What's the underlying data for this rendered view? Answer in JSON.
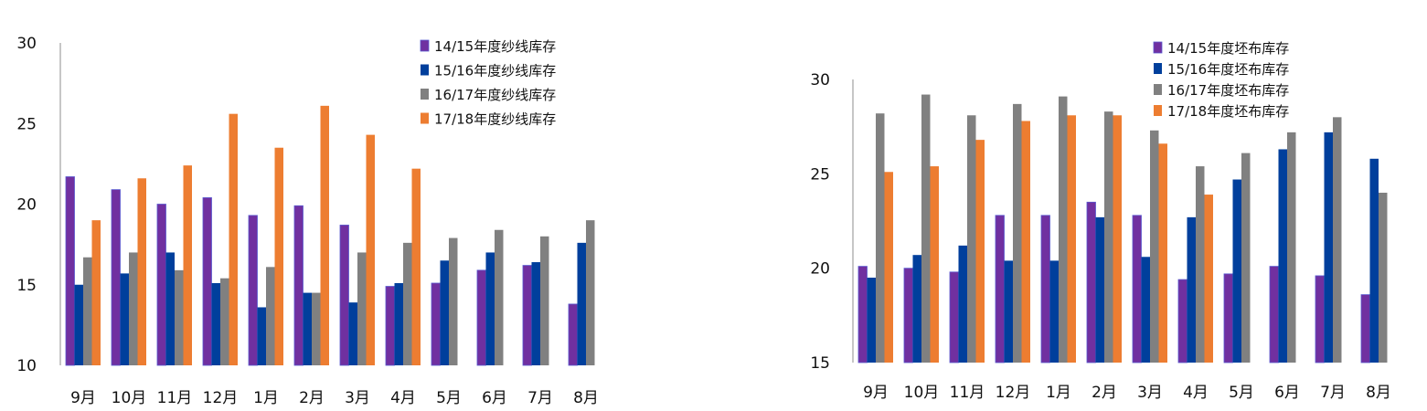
{
  "chart_data": [
    {
      "type": "bar",
      "categories": [
        "9月",
        "10月",
        "11月",
        "12月",
        "1月",
        "2月",
        "3月",
        "4月",
        "5月",
        "6月",
        "7月",
        "8月"
      ],
      "ylim": [
        10,
        30
      ],
      "yticks": [
        10,
        15,
        20,
        25,
        30
      ],
      "legend_position": "top-right",
      "series": [
        {
          "name": "14/15年度纱线库存",
          "color": "#7030A0",
          "values": [
            21.7,
            20.9,
            20.0,
            20.4,
            19.3,
            19.9,
            18.7,
            14.9,
            15.1,
            15.9,
            16.2,
            13.8
          ]
        },
        {
          "name": "15/16年度纱线库存",
          "color": "#003F9C",
          "values": [
            15.0,
            15.7,
            17.0,
            15.1,
            13.6,
            14.5,
            13.9,
            15.1,
            16.5,
            17.0,
            16.4,
            17.6
          ]
        },
        {
          "name": "16/17年度纱线库存",
          "color": "#808080",
          "values": [
            16.7,
            17.0,
            15.9,
            15.4,
            16.1,
            14.5,
            17.0,
            17.6,
            17.9,
            18.4,
            18.0,
            19.0
          ]
        },
        {
          "name": "17/18年度纱线库存",
          "color": "#ED7D31",
          "values": [
            19.0,
            21.6,
            22.4,
            25.6,
            23.5,
            26.1,
            24.3,
            22.2,
            null,
            null,
            null,
            null
          ]
        }
      ]
    },
    {
      "type": "bar",
      "categories": [
        "9月",
        "10月",
        "11月",
        "12月",
        "1月",
        "2月",
        "3月",
        "4月",
        "5月",
        "6月",
        "7月",
        "8月"
      ],
      "ylim": [
        15,
        30
      ],
      "yticks": [
        15,
        20,
        25,
        30
      ],
      "legend_position": "top-right",
      "series": [
        {
          "name": "14/15年度坯布库存",
          "color": "#7030A0",
          "values": [
            20.1,
            20.0,
            19.8,
            22.8,
            22.8,
            23.5,
            22.8,
            19.4,
            19.7,
            20.1,
            19.6,
            18.6
          ]
        },
        {
          "name": "15/16年度坯布库存",
          "color": "#003F9C",
          "values": [
            19.5,
            20.7,
            21.2,
            20.4,
            20.4,
            22.7,
            20.6,
            22.7,
            24.7,
            26.3,
            27.2,
            25.8
          ]
        },
        {
          "name": "16/17年度坯布库存",
          "color": "#808080",
          "values": [
            28.2,
            29.2,
            28.1,
            28.7,
            29.1,
            28.3,
            27.3,
            25.4,
            26.1,
            27.2,
            28.0,
            24.0
          ]
        },
        {
          "name": "17/18年度坯布库存",
          "color": "#ED7D31",
          "values": [
            25.1,
            25.4,
            26.8,
            27.8,
            28.1,
            28.1,
            26.6,
            23.9,
            null,
            null,
            null,
            null
          ]
        }
      ]
    }
  ]
}
